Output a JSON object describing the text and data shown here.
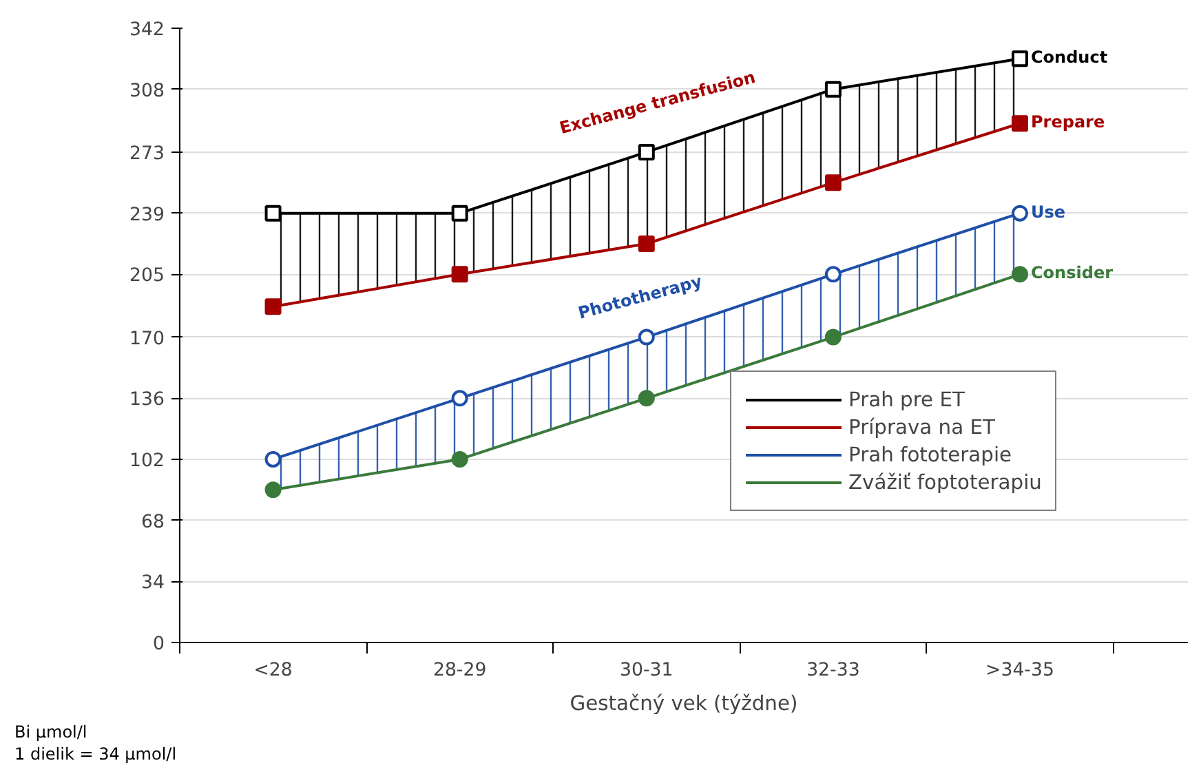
{
  "chart_data": {
    "type": "line",
    "xlabel": "Gestačný vek (týždne)",
    "categories": [
      "<28",
      "28-29",
      "30-31",
      "32-33",
      ">34-35"
    ],
    "series": [
      {
        "name": "Prah pre ET",
        "color": "#000000",
        "marker": "square",
        "values": [
          239,
          239,
          273,
          308,
          325
        ],
        "lower": [
          187,
          205,
          222,
          256,
          289
        ],
        "upper": [
          239,
          239,
          273,
          308,
          325
        ]
      },
      {
        "name": "Príprava na ET",
        "color": "#a50000",
        "marker": "square",
        "values": [
          187,
          205,
          222,
          256,
          289
        ]
      },
      {
        "name": "Prah fototerapie",
        "color": "#1f4fa8",
        "marker": "circle",
        "values": [
          102,
          136,
          170,
          205,
          239
        ],
        "lower": [
          85,
          102,
          136,
          170,
          205
        ],
        "upper": [
          102,
          136,
          170,
          205,
          239
        ]
      },
      {
        "name": "Zvážiť foptoterapiu",
        "color": "#3a7a3a",
        "marker": "circle",
        "values": [
          85,
          102,
          136,
          170,
          205
        ]
      }
    ],
    "annotations": [
      {
        "text": "Conduct",
        "x": ">34-35",
        "y": 325
      },
      {
        "text": "Prepare",
        "x": ">34-35",
        "y": 289
      },
      {
        "text": "Use",
        "x": ">34-35",
        "y": 239
      },
      {
        "text": "Consider",
        "x": ">34-35",
        "y": 205
      },
      "Exchange transfusion",
      "Phototherapy",
      "Bi  µmol/l",
      "1 dielik = 34 µmol/l"
    ],
    "ylim": [
      0,
      342
    ],
    "yticks": [
      0,
      34,
      68,
      102,
      136,
      170,
      205,
      239,
      273,
      308,
      342
    ],
    "grid": "y",
    "legend": "bottom right"
  }
}
